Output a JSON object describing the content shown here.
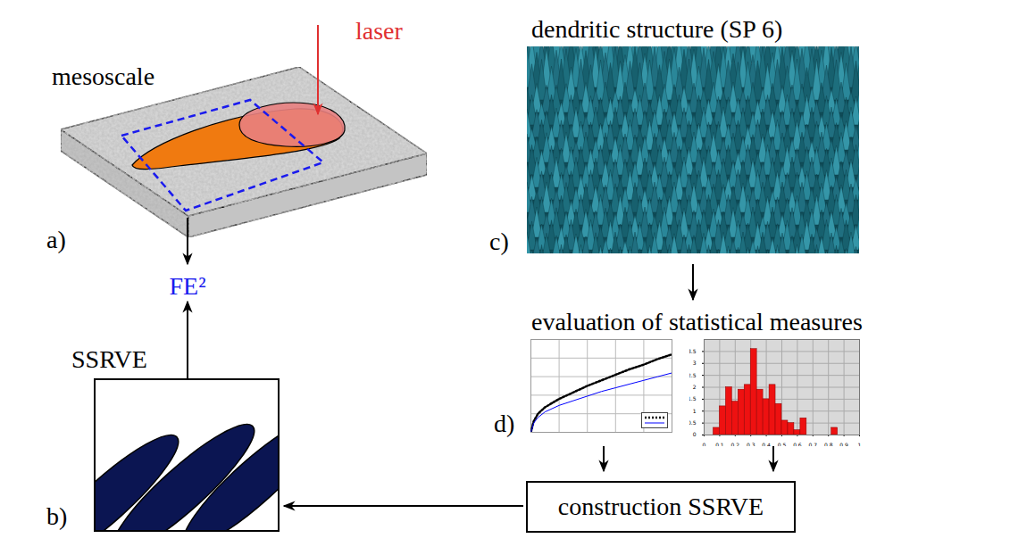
{
  "panels": {
    "a": {
      "label": "a)",
      "title": "mesoscale",
      "annotation": "laser"
    },
    "b": {
      "label": "b)",
      "title": "SSRVE"
    },
    "c": {
      "label": "c)",
      "title": "dendritic structure (SP 6)"
    },
    "d": {
      "label": "d)",
      "title": "evaluation of statistical measures"
    }
  },
  "nodes": {
    "fe2": "FE²",
    "construction": "construction SSRVE"
  },
  "chart_data": [
    {
      "type": "line",
      "x": [
        0,
        0.02,
        0.05,
        0.1,
        0.2,
        0.3,
        0.4,
        0.5,
        0.6,
        0.7,
        0.8,
        0.9,
        1.0
      ],
      "series": [
        {
          "color": "#000000",
          "line_style": "dotted",
          "values": [
            0.0,
            0.12,
            0.2,
            0.27,
            0.36,
            0.43,
            0.5,
            0.56,
            0.62,
            0.68,
            0.73,
            0.79,
            0.84
          ]
        },
        {
          "color": "#0000ff",
          "line_style": "solid",
          "values": [
            0.0,
            0.1,
            0.16,
            0.22,
            0.29,
            0.34,
            0.39,
            0.44,
            0.48,
            0.52,
            0.56,
            0.6,
            0.64
          ]
        }
      ],
      "xlim": [
        0,
        1
      ],
      "ylim": [
        0,
        1
      ],
      "xticks": [
        0,
        0.2,
        0.4,
        0.6,
        0.8,
        1
      ],
      "yticks": [
        0,
        0.2,
        0.4,
        0.6,
        0.8,
        1
      ],
      "grid": true,
      "legend": "lower right",
      "tick_labels": false
    },
    {
      "type": "histogram",
      "bins": [
        0.06,
        0.1,
        0.14,
        0.18,
        0.22,
        0.26,
        0.3,
        0.34,
        0.38,
        0.42,
        0.46,
        0.5,
        0.54,
        0.58,
        0.62,
        0.66,
        0.7,
        0.74,
        0.78,
        0.82,
        0.86
      ],
      "values": [
        0.3,
        1.2,
        2.0,
        1.4,
        1.9,
        2.1,
        3.6,
        1.9,
        1.5,
        2.1,
        1.3,
        0.6,
        0.5,
        0.2,
        0.7,
        0,
        0,
        0,
        0,
        0.3
      ],
      "color": "#ee1111",
      "xlim": [
        0,
        1
      ],
      "ylim": [
        0,
        4
      ],
      "xticks": [
        0,
        0.1,
        0.2,
        0.3,
        0.4,
        0.5,
        0.6,
        0.7,
        0.8,
        0.9,
        1
      ],
      "yticks": [
        0,
        0.5,
        1,
        1.5,
        2,
        2.5,
        3,
        3.5
      ],
      "grid": true
    }
  ]
}
